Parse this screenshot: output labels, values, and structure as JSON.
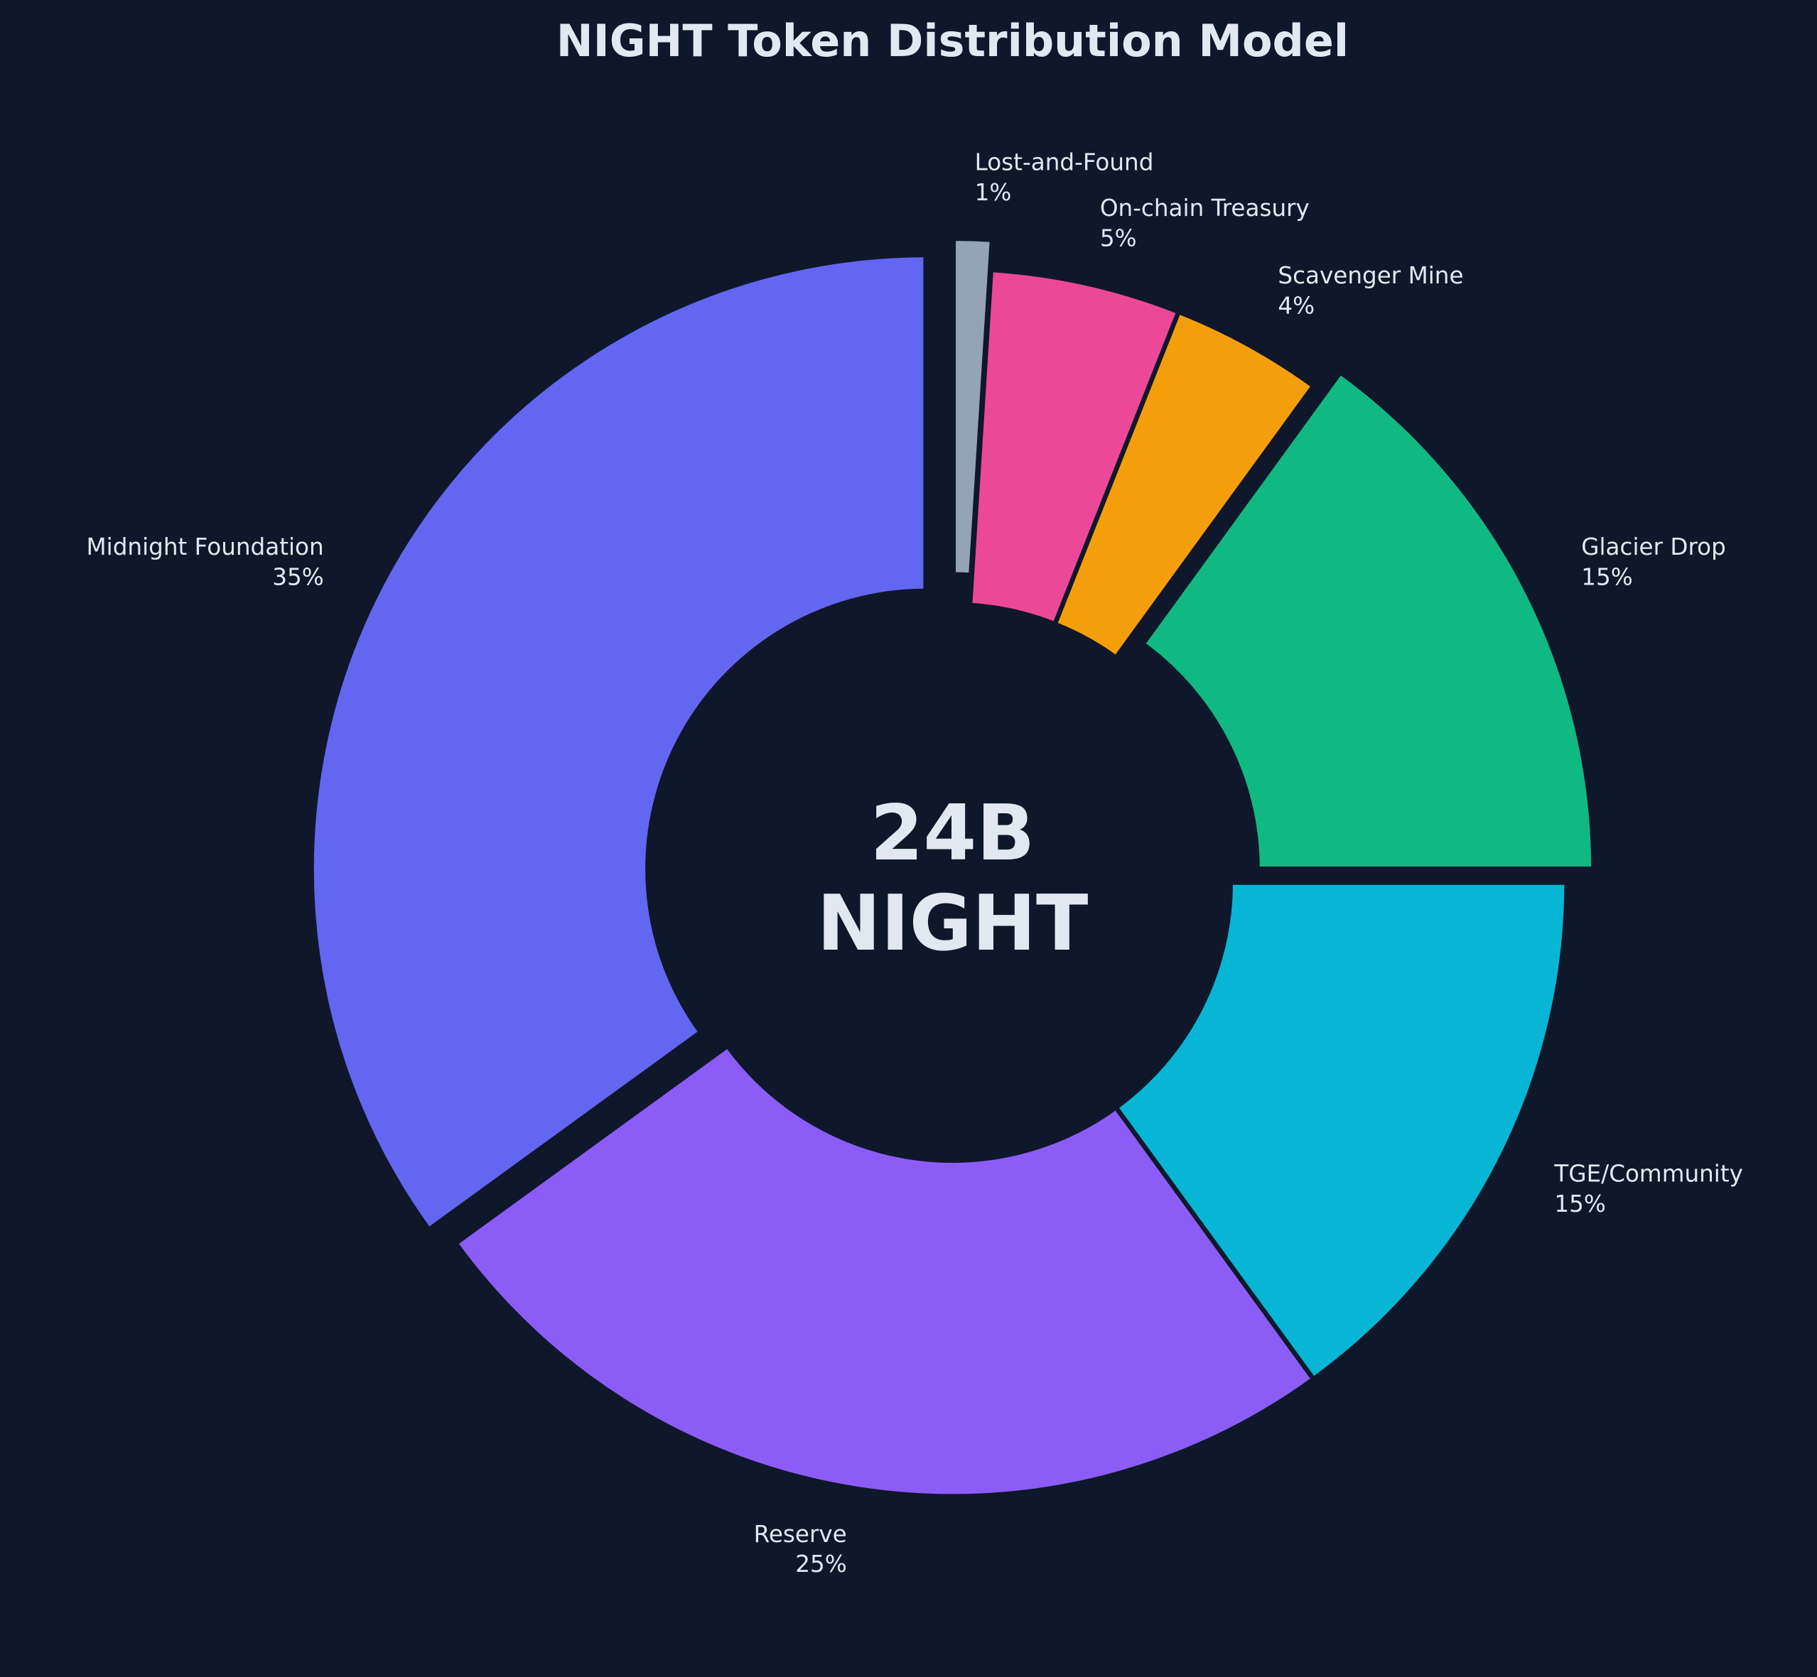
{
  "chart_data": {
    "type": "donut",
    "title": "NIGHT Token Distribution Model",
    "categories": [
      "Midnight Foundation",
      "Reserve",
      "TGE/Community",
      "Glacier Drop",
      "Scavenger Mine",
      "On-chain Treasury",
      "Lost-and-Found"
    ],
    "values": [
      35,
      25,
      15,
      15,
      4,
      5,
      1
    ],
    "value_labels": [
      "35%",
      "25%",
      "15%",
      "15%",
      "4%",
      "5%",
      "1%"
    ],
    "colors": [
      "#6366f1",
      "#8b5cf6",
      "#06b6d4",
      "#10b981",
      "#f59e0b",
      "#ec4899",
      "#94a3b8"
    ],
    "explode": [
      true,
      false,
      false,
      true,
      false,
      false,
      true
    ],
    "center_label": [
      "24B",
      "NIGHT"
    ]
  }
}
